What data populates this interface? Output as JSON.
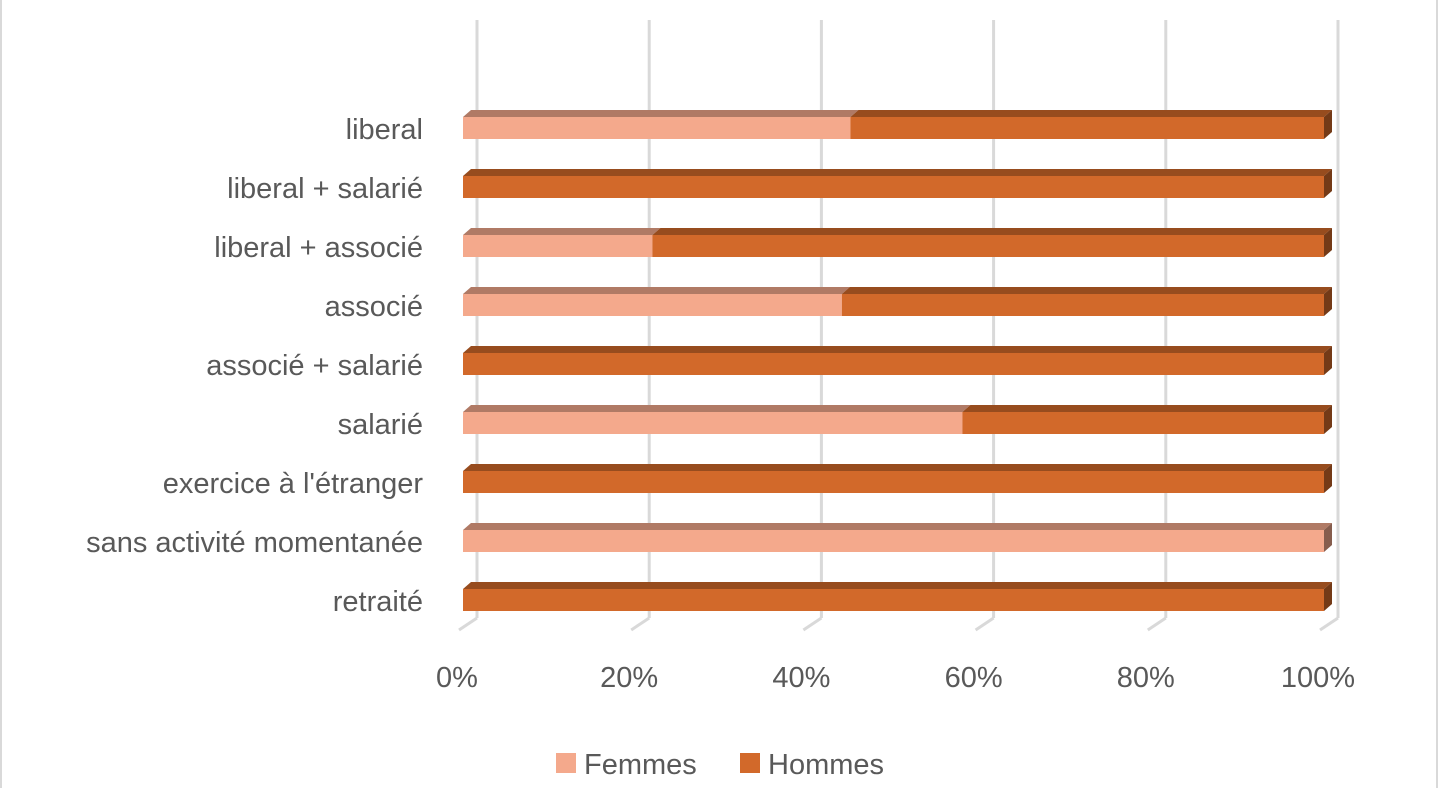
{
  "chart_data": {
    "type": "bar",
    "orientation": "horizontal",
    "stacked": "percent",
    "style": "3d",
    "categories": [
      "liberal",
      "liberal + salarié",
      "liberal + associé",
      "associé",
      "associé + salarié",
      "salarié",
      "exercice à l'étranger",
      "sans activité momentanée",
      "retraité"
    ],
    "series": [
      {
        "name": "Femmes",
        "color": "#f4a98c",
        "values": [
          45,
          0,
          22,
          44,
          0,
          58,
          0,
          100,
          0
        ]
      },
      {
        "name": "Hommes",
        "color": "#d2692a",
        "values": [
          55,
          100,
          78,
          56,
          100,
          42,
          100,
          0,
          100
        ]
      }
    ],
    "xticks": [
      "0%",
      "20%",
      "40%",
      "60%",
      "80%",
      "100%"
    ],
    "xlim": [
      0,
      100
    ],
    "grid": "vertical",
    "legend_position": "bottom"
  }
}
